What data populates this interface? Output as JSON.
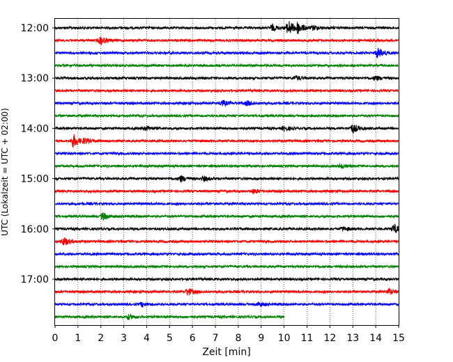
{
  "chart_data": {
    "type": "line",
    "title": "",
    "xlabel": "Zeit  [min]",
    "ylabel": "UTC (Lokalzeit = UTC + 02:00)",
    "xlim": [
      0,
      15
    ],
    "x_ticks": [
      0,
      1,
      2,
      3,
      4,
      5,
      6,
      7,
      8,
      9,
      10,
      11,
      12,
      13,
      14,
      15
    ],
    "grid": "vertical-dotted",
    "time_labels": [
      "12:00",
      "13:00",
      "14:00",
      "15:00",
      "16:00",
      "17:00"
    ],
    "trace_interval_min": 15,
    "colors": [
      "#000000",
      "#ff0000",
      "#0000ff",
      "#008000"
    ],
    "traces": [
      {
        "start": "12:00",
        "color": "#000000",
        "end_min": 15,
        "events": [
          {
            "t": 9.5,
            "amp": 4
          },
          {
            "t": 10.2,
            "amp": 10
          },
          {
            "t": 10.6,
            "amp": 7
          },
          {
            "t": 11.3,
            "amp": 3
          }
        ]
      },
      {
        "start": "12:15",
        "color": "#ff0000",
        "end_min": 15,
        "events": [
          {
            "t": 2.0,
            "amp": 6
          }
        ]
      },
      {
        "start": "12:30",
        "color": "#0000ff",
        "end_min": 15,
        "events": [
          {
            "t": 14.1,
            "amp": 7
          }
        ]
      },
      {
        "start": "12:45",
        "color": "#008000",
        "end_min": 15,
        "events": []
      },
      {
        "start": "13:00",
        "color": "#000000",
        "end_min": 15,
        "events": [
          {
            "t": 10.5,
            "amp": 3
          },
          {
            "t": 14.0,
            "amp": 3
          }
        ]
      },
      {
        "start": "13:15",
        "color": "#ff0000",
        "end_min": 15,
        "events": []
      },
      {
        "start": "13:30",
        "color": "#0000ff",
        "end_min": 15,
        "events": [
          {
            "t": 7.3,
            "amp": 4
          },
          {
            "t": 8.4,
            "amp": 3
          }
        ]
      },
      {
        "start": "13:45",
        "color": "#008000",
        "end_min": 15,
        "events": []
      },
      {
        "start": "14:00",
        "color": "#000000",
        "end_min": 15,
        "events": [
          {
            "t": 4.0,
            "amp": 3
          },
          {
            "t": 10.0,
            "amp": 3
          },
          {
            "t": 13.0,
            "amp": 6
          }
        ]
      },
      {
        "start": "14:15",
        "color": "#ff0000",
        "end_min": 15,
        "events": [
          {
            "t": 0.8,
            "amp": 9
          },
          {
            "t": 1.3,
            "amp": 3
          }
        ]
      },
      {
        "start": "14:30",
        "color": "#0000ff",
        "end_min": 15,
        "events": []
      },
      {
        "start": "14:45",
        "color": "#008000",
        "end_min": 15,
        "events": [
          {
            "t": 12.5,
            "amp": 3
          }
        ]
      },
      {
        "start": "15:00",
        "color": "#000000",
        "end_min": 15,
        "events": [
          {
            "t": 5.5,
            "amp": 4
          },
          {
            "t": 6.5,
            "amp": 3
          }
        ]
      },
      {
        "start": "15:15",
        "color": "#ff0000",
        "end_min": 15,
        "events": [
          {
            "t": 8.7,
            "amp": 3
          }
        ]
      },
      {
        "start": "15:30",
        "color": "#0000ff",
        "end_min": 15,
        "events": []
      },
      {
        "start": "15:45",
        "color": "#008000",
        "end_min": 15,
        "events": [
          {
            "t": 2.1,
            "amp": 5
          }
        ]
      },
      {
        "start": "16:00",
        "color": "#000000",
        "end_min": 15,
        "events": [
          {
            "t": 12.6,
            "amp": 3
          },
          {
            "t": 14.8,
            "amp": 6
          }
        ]
      },
      {
        "start": "16:15",
        "color": "#ff0000",
        "end_min": 15,
        "events": [
          {
            "t": 0.4,
            "amp": 6
          }
        ]
      },
      {
        "start": "16:30",
        "color": "#0000ff",
        "end_min": 15,
        "events": []
      },
      {
        "start": "16:45",
        "color": "#008000",
        "end_min": 15,
        "events": []
      },
      {
        "start": "17:00",
        "color": "#000000",
        "end_min": 15,
        "events": []
      },
      {
        "start": "17:15",
        "color": "#ff0000",
        "end_min": 15,
        "events": [
          {
            "t": 5.8,
            "amp": 5
          },
          {
            "t": 14.6,
            "amp": 4
          }
        ]
      },
      {
        "start": "17:30",
        "color": "#0000ff",
        "end_min": 15,
        "events": [
          {
            "t": 3.8,
            "amp": 3
          },
          {
            "t": 8.9,
            "amp": 3
          }
        ]
      },
      {
        "start": "17:45",
        "color": "#008000",
        "end_min": 10,
        "events": [
          {
            "t": 3.2,
            "amp": 3
          }
        ]
      }
    ]
  }
}
